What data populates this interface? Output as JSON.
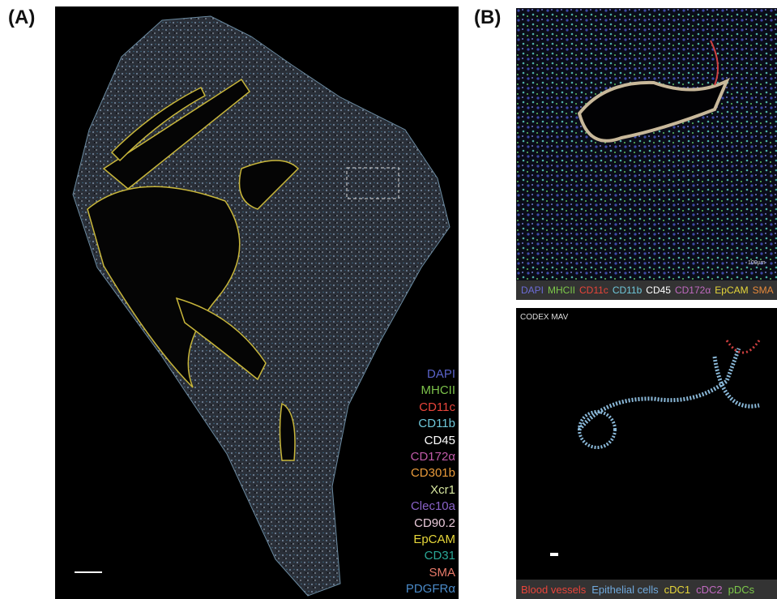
{
  "panels": {
    "a": {
      "label": "(A)",
      "markers": [
        {
          "text": "DAPI",
          "color": "#5a63c9"
        },
        {
          "text": "MHCII",
          "color": "#7cc24a"
        },
        {
          "text": "CD11c",
          "color": "#e8443a"
        },
        {
          "text": "CD11b",
          "color": "#6fc7d9"
        },
        {
          "text": "CD45",
          "color": "#ffffff"
        },
        {
          "text": "CD172α",
          "color": "#c05aa8"
        },
        {
          "text": "CD301b",
          "color": "#e89a3a"
        },
        {
          "text": "Xcr1",
          "color": "#d8e8a0"
        },
        {
          "text": "Clec10a",
          "color": "#8a62c8"
        },
        {
          "text": "CD90.2",
          "color": "#e8c8d8"
        },
        {
          "text": "EpCAM",
          "color": "#e6d63a"
        },
        {
          "text": "CD31",
          "color": "#2aa898"
        },
        {
          "text": "SMA",
          "color": "#e87a6a"
        },
        {
          "text": "PDGFRα",
          "color": "#4a8ac8"
        }
      ]
    },
    "b": {
      "label": "(B)",
      "scale_text": "100µm",
      "top_legend": [
        {
          "text": "DAPI",
          "color": "#6b6bd6"
        },
        {
          "text": "MHCII",
          "color": "#7dc94a"
        },
        {
          "text": "CD11c",
          "color": "#e8443a"
        },
        {
          "text": "CD11b",
          "color": "#6fc7d9"
        },
        {
          "text": "CD45",
          "color": "#ffffff"
        },
        {
          "text": "CD172α",
          "color": "#c06ac0"
        },
        {
          "text": "EpCAM",
          "color": "#e6d63a"
        },
        {
          "text": "SMA",
          "color": "#e88a3a"
        }
      ],
      "bottom_title": "CODEX MAV",
      "bottom_legend": [
        {
          "text": "Blood vessels",
          "color": "#e8443a"
        },
        {
          "text": "Epithelial cells",
          "color": "#6fa8dc"
        },
        {
          "text": "cDC1",
          "color": "#e6d63a"
        },
        {
          "text": "cDC2",
          "color": "#c06ac0"
        },
        {
          "text": "pDCs",
          "color": "#7dc94a"
        }
      ]
    }
  }
}
